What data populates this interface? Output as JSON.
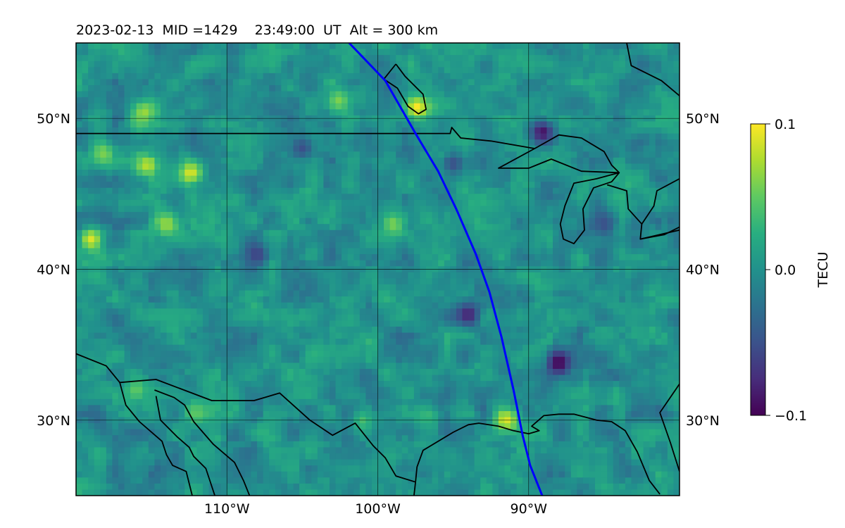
{
  "chart_data": {
    "type": "heatmap",
    "title": "2023-02-13  MID =1429    23:49:00  UT  Alt = 300 km",
    "projection": "plate carree map of central North America",
    "xlim": [
      -120,
      -80
    ],
    "ylim": [
      25,
      55
    ],
    "grid": true,
    "x_ticks": [
      {
        "value": -110,
        "label": "110°W"
      },
      {
        "value": -100,
        "label": "100°W"
      },
      {
        "value": -90,
        "label": "90°W"
      }
    ],
    "y_ticks": [
      {
        "value": 30,
        "label": "30°N"
      },
      {
        "value": 40,
        "label": "40°N"
      },
      {
        "value": 50,
        "label": "50°N"
      }
    ],
    "colorbar": {
      "label": "TECU",
      "colormap": "viridis",
      "vmin": -0.1,
      "vmax": 0.1,
      "ticks": [
        {
          "value": 0.1,
          "label": "0.1"
        },
        {
          "value": 0.0,
          "label": "0.0"
        },
        {
          "value": -0.1,
          "label": "−0.1"
        }
      ]
    },
    "field": {
      "grid_step_deg": 0.4,
      "background_value": 0.0,
      "noise_amplitude": 0.035,
      "features": [
        {
          "lon": -97.4,
          "lat": 50.7,
          "value": 0.1
        },
        {
          "lon": -115.5,
          "lat": 50.4,
          "value": 0.07
        },
        {
          "lon": -102.6,
          "lat": 51.2,
          "value": 0.06
        },
        {
          "lon": -118.2,
          "lat": 47.7,
          "value": 0.06
        },
        {
          "lon": -115.3,
          "lat": 46.9,
          "value": 0.08
        },
        {
          "lon": -112.4,
          "lat": 46.4,
          "value": 0.09
        },
        {
          "lon": -114.0,
          "lat": 43.0,
          "value": 0.07
        },
        {
          "lon": -119.0,
          "lat": 42.0,
          "value": 0.09
        },
        {
          "lon": -99.0,
          "lat": 43.0,
          "value": 0.06
        },
        {
          "lon": -116.0,
          "lat": 32.0,
          "value": 0.05
        },
        {
          "lon": -101.0,
          "lat": 30.0,
          "value": 0.04
        },
        {
          "lon": -91.5,
          "lat": 30.0,
          "value": 0.09
        },
        {
          "lon": -112.0,
          "lat": 30.5,
          "value": 0.05
        },
        {
          "lon": -88.0,
          "lat": 33.8,
          "value": -0.1
        },
        {
          "lon": -89.1,
          "lat": 49.1,
          "value": -0.09
        },
        {
          "lon": -94.0,
          "lat": 37.0,
          "value": -0.08
        },
        {
          "lon": -108.0,
          "lat": 41.0,
          "value": -0.06
        },
        {
          "lon": -85.0,
          "lat": 43.0,
          "value": -0.05
        },
        {
          "lon": -105.0,
          "lat": 48.0,
          "value": -0.05
        },
        {
          "lon": -95.0,
          "lat": 47.0,
          "value": -0.05
        }
      ]
    },
    "terminator_line": {
      "color": "#0000ff",
      "points": [
        [
          -101.9,
          55.0
        ],
        [
          -99.5,
          52.5
        ],
        [
          -97.5,
          49.0
        ],
        [
          -96.0,
          46.5
        ],
        [
          -94.8,
          44.0
        ],
        [
          -93.5,
          41.0
        ],
        [
          -92.6,
          38.5
        ],
        [
          -91.8,
          35.5
        ],
        [
          -91.0,
          32.0
        ],
        [
          -90.4,
          29.0
        ],
        [
          -89.9,
          27.0
        ],
        [
          -89.1,
          25.0
        ]
      ]
    },
    "coastlines": [
      [
        [
          -120,
          49.0
        ],
        [
          -95.2,
          49.0
        ],
        [
          -95.1,
          49.4
        ],
        [
          -94.5,
          48.7
        ],
        [
          -92.5,
          48.5
        ],
        [
          -89.6,
          48.0
        ]
      ],
      [
        [
          -89.6,
          48.0
        ],
        [
          -88.0,
          48.9
        ],
        [
          -86.5,
          48.7
        ],
        [
          -85.0,
          47.8
        ],
        [
          -84.5,
          46.9
        ],
        [
          -84.0,
          46.4
        ],
        [
          -86.5,
          46.5
        ],
        [
          -88.5,
          47.3
        ],
        [
          -90.0,
          46.7
        ],
        [
          -92.0,
          46.7
        ],
        [
          -89.6,
          48.0
        ]
      ],
      [
        [
          -84.0,
          46.4
        ],
        [
          -85.5,
          46.0
        ],
        [
          -87.0,
          45.7
        ],
        [
          -87.6,
          44.2
        ],
        [
          -87.9,
          43.0
        ],
        [
          -87.7,
          42.0
        ],
        [
          -87.0,
          41.7
        ],
        [
          -86.3,
          42.6
        ],
        [
          -86.4,
          44.0
        ],
        [
          -85.7,
          45.4
        ],
        [
          -84.5,
          45.8
        ],
        [
          -84.0,
          46.4
        ]
      ],
      [
        [
          -84.8,
          45.6
        ],
        [
          -83.5,
          45.2
        ],
        [
          -83.4,
          44.0
        ],
        [
          -82.5,
          43.0
        ],
        [
          -82.6,
          42.0
        ],
        [
          -80,
          42.6
        ]
      ],
      [
        [
          -80,
          46.0
        ],
        [
          -81.5,
          45.2
        ],
        [
          -81.7,
          44.2
        ],
        [
          -82.5,
          43.0
        ]
      ],
      [
        [
          -82.6,
          42.0
        ],
        [
          -81.0,
          42.3
        ],
        [
          -80,
          42.8
        ]
      ],
      [
        [
          -83.5,
          55.0
        ],
        [
          -83.2,
          53.5
        ],
        [
          -81.2,
          52.5
        ],
        [
          -80,
          51.5
        ]
      ],
      [
        [
          -98.8,
          53.6
        ],
        [
          -98.2,
          52.8
        ],
        [
          -97.0,
          51.6
        ],
        [
          -96.8,
          50.6
        ],
        [
          -97.3,
          50.3
        ],
        [
          -98.0,
          50.8
        ],
        [
          -98.7,
          52.0
        ],
        [
          -99.6,
          52.6
        ],
        [
          -98.8,
          53.6
        ]
      ],
      [
        [
          -120,
          34.4
        ],
        [
          -118.0,
          33.6
        ],
        [
          -117.1,
          32.5
        ],
        [
          -114.7,
          32.7
        ],
        [
          -111.0,
          31.3
        ],
        [
          -108.2,
          31.3
        ],
        [
          -106.5,
          31.8
        ],
        [
          -104.5,
          30.0
        ],
        [
          -103.0,
          29.0
        ],
        [
          -101.5,
          29.8
        ],
        [
          -100.3,
          28.3
        ],
        [
          -99.5,
          27.5
        ],
        [
          -98.8,
          26.3
        ],
        [
          -97.5,
          25.9
        ]
      ],
      [
        [
          -97.5,
          25.9
        ],
        [
          -97.4,
          26.9
        ],
        [
          -97.0,
          28.0
        ],
        [
          -95.0,
          29.2
        ],
        [
          -94.0,
          29.7
        ],
        [
          -93.3,
          29.8
        ],
        [
          -92.0,
          29.6
        ],
        [
          -91.0,
          29.3
        ],
        [
          -90.0,
          29.1
        ],
        [
          -89.3,
          29.3
        ],
        [
          -89.8,
          29.6
        ],
        [
          -89.0,
          30.3
        ],
        [
          -88.0,
          30.4
        ],
        [
          -87.0,
          30.4
        ],
        [
          -85.5,
          30.0
        ],
        [
          -84.5,
          29.9
        ],
        [
          -83.6,
          29.3
        ],
        [
          -82.8,
          27.9
        ],
        [
          -82.0,
          26.0
        ],
        [
          -81.3,
          25.1
        ]
      ],
      [
        [
          -80.0,
          26.6
        ],
        [
          -80.6,
          28.5
        ],
        [
          -81.3,
          30.5
        ],
        [
          -80.0,
          32.4
        ]
      ],
      [
        [
          -117.1,
          32.5
        ],
        [
          -116.7,
          31.0
        ],
        [
          -115.8,
          29.9
        ],
        [
          -114.3,
          28.6
        ],
        [
          -114.0,
          27.7
        ],
        [
          -113.6,
          27.0
        ],
        [
          -112.7,
          26.6
        ],
        [
          -112.3,
          25.0
        ]
      ],
      [
        [
          -114.7,
          31.6
        ],
        [
          -114.4,
          30.0
        ],
        [
          -113.3,
          28.9
        ],
        [
          -112.5,
          28.2
        ],
        [
          -112.2,
          27.6
        ],
        [
          -111.4,
          26.8
        ],
        [
          -110.8,
          25.0
        ]
      ],
      [
        [
          -114.8,
          32.0
        ],
        [
          -113.5,
          31.5
        ],
        [
          -112.8,
          31.0
        ],
        [
          -112.2,
          29.9
        ],
        [
          -110.9,
          28.4
        ],
        [
          -109.5,
          27.2
        ],
        [
          -108.9,
          26.0
        ],
        [
          -108.5,
          25.0
        ]
      ],
      [
        [
          -97.5,
          25.9
        ],
        [
          -97.6,
          25.0
        ]
      ]
    ]
  }
}
